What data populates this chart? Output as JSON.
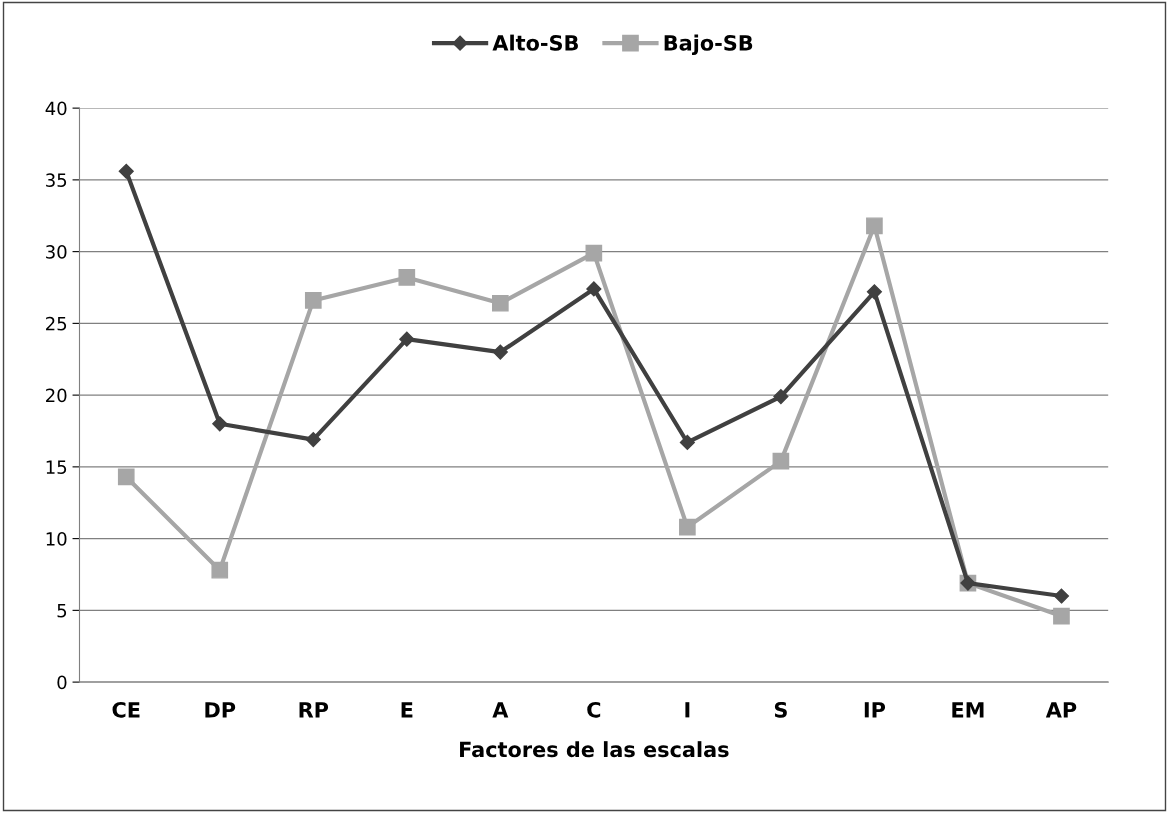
{
  "chart_data": {
    "type": "line",
    "xlabel": "Factores de las escalas",
    "categories": [
      "CE",
      "DP",
      "RP",
      "E",
      "A",
      "C",
      "I",
      "S",
      "IP",
      "EM",
      "AP"
    ],
    "series": [
      {
        "name": "Alto-SB",
        "color": "#404040",
        "marker": "diamond",
        "values": [
          35.6,
          18.0,
          16.9,
          23.9,
          23.0,
          27.4,
          16.7,
          19.9,
          27.2,
          6.9,
          6.0
        ]
      },
      {
        "name": "Bajo-SB",
        "color": "#a6a6a6",
        "marker": "square",
        "values": [
          14.3,
          7.8,
          26.6,
          28.2,
          26.4,
          29.9,
          10.8,
          15.4,
          31.8,
          6.9,
          4.6
        ]
      }
    ],
    "ylim": [
      0,
      40
    ],
    "yticks": [
      0,
      5,
      10,
      15,
      20,
      25,
      30,
      35,
      40
    ],
    "grid": "y",
    "legend": "top",
    "line_style": "solid"
  }
}
